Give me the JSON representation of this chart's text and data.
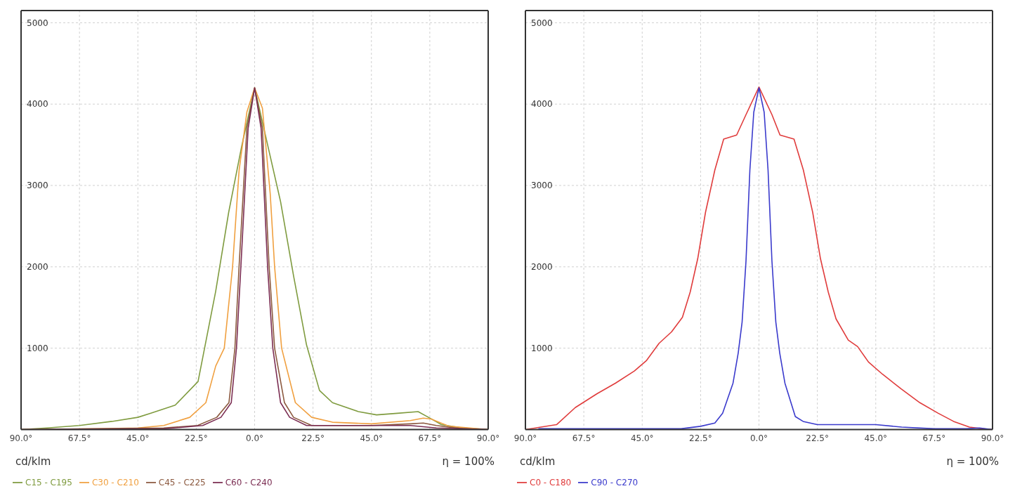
{
  "chart_data": [
    {
      "type": "line",
      "xlim": [
        -90,
        90
      ],
      "ylim": [
        0,
        5150
      ],
      "xticks": [
        {
          "value": -90,
          "label": "90.0°"
        },
        {
          "value": -67.5,
          "label": "67.5°"
        },
        {
          "value": -45,
          "label": "45.0°"
        },
        {
          "value": -22.5,
          "label": "22.5°"
        },
        {
          "value": 0,
          "label": "0.0°"
        },
        {
          "value": 22.5,
          "label": "22.5°"
        },
        {
          "value": 45,
          "label": "45.0°"
        },
        {
          "value": 67.5,
          "label": "67.5°"
        },
        {
          "value": 90,
          "label": "90.0°"
        }
      ],
      "yticks": [
        1000,
        2000,
        3000,
        4000,
        5000
      ],
      "grid": true,
      "legend": "bottom",
      "marker": "none",
      "line_style": "solid",
      "annotations": [
        "cd/klm",
        "η = 100%"
      ],
      "series": [
        {
          "name": "C15 - C195",
          "color": "#7f9b3f",
          "x": [
            -90,
            -80,
            -67.5,
            -55,
            -45,
            -40,
            -30.6,
            -21.8,
            -15,
            -10,
            -5,
            0,
            5,
            10,
            15,
            20,
            25,
            30,
            40,
            47,
            55,
            63,
            67,
            72,
            80,
            90
          ],
          "values": [
            0,
            20,
            50,
            100,
            150,
            200,
            300,
            590,
            1700,
            2670,
            3480,
            4200,
            3500,
            2800,
            1890,
            1040,
            480,
            330,
            220,
            180,
            200,
            220,
            150,
            60,
            20,
            0
          ]
        },
        {
          "name": "C30 - C210",
          "color": "#f0a040",
          "x": [
            -90,
            -60,
            -45,
            -35,
            -25,
            -18.8,
            -15,
            -11.7,
            -8.5,
            -6,
            -3,
            0,
            3,
            6,
            7.7,
            10.4,
            15.7,
            22,
            30,
            45,
            60,
            65,
            68,
            75,
            90
          ],
          "values": [
            0,
            10,
            20,
            50,
            150,
            330,
            780,
            1000,
            2000,
            3180,
            3900,
            4200,
            3950,
            2900,
            2000,
            1000,
            330,
            150,
            90,
            70,
            110,
            140,
            130,
            40,
            0
          ]
        },
        {
          "name": "C45 - C225",
          "color": "#8c5a40",
          "x": [
            -90,
            -35,
            -22,
            -14.6,
            -9.9,
            -7.6,
            -6,
            -3,
            0,
            3,
            5.6,
            7.7,
            11.5,
            15,
            22,
            45,
            60,
            65,
            70,
            80,
            90
          ],
          "values": [
            0,
            20,
            50,
            150,
            330,
            1000,
            2000,
            3700,
            4200,
            3700,
            2000,
            1000,
            330,
            150,
            50,
            50,
            70,
            80,
            50,
            10,
            0
          ]
        },
        {
          "name": "C60 - C240",
          "color": "#7b2d52",
          "x": [
            -90,
            -35,
            -20,
            -13,
            -9,
            -7,
            -5.3,
            -2.5,
            0,
            2.5,
            5,
            7,
            10,
            13.5,
            20,
            45,
            60,
            70,
            80,
            90
          ],
          "values": [
            0,
            10,
            50,
            150,
            330,
            1000,
            2000,
            3700,
            4200,
            3700,
            2000,
            1000,
            330,
            150,
            50,
            50,
            50,
            20,
            10,
            0
          ]
        }
      ]
    },
    {
      "type": "line",
      "xlim": [
        -90,
        90
      ],
      "ylim": [
        0,
        5150
      ],
      "xticks": [
        {
          "value": -90,
          "label": "90.0°"
        },
        {
          "value": -67.5,
          "label": "67.5°"
        },
        {
          "value": -45,
          "label": "45.0°"
        },
        {
          "value": -22.5,
          "label": "22.5°"
        },
        {
          "value": 0,
          "label": "0.0°"
        },
        {
          "value": 22.5,
          "label": "22.5°"
        },
        {
          "value": 45,
          "label": "45.0°"
        },
        {
          "value": 67.5,
          "label": "67.5°"
        },
        {
          "value": 90,
          "label": "90.0°"
        }
      ],
      "yticks": [
        1000,
        2000,
        3000,
        4000,
        5000
      ],
      "grid": true,
      "legend": "bottom",
      "marker": "none",
      "line_style": "solid",
      "annotations": [
        "cd/klm",
        "η = 100%"
      ],
      "series": [
        {
          "name": "C0 - C180",
          "color": "#e03c3c",
          "x": [
            -90,
            -78,
            -70.8,
            -62.4,
            -55.3,
            -48,
            -43.3,
            -38.5,
            -33.7,
            -29.5,
            -26.5,
            -23.6,
            -20.6,
            -17,
            -13.6,
            -8.6,
            -5,
            0,
            5,
            8.1,
            13.5,
            17.1,
            20.7,
            23.7,
            26.7,
            29.7,
            34.4,
            38,
            42.2,
            47.6,
            54.8,
            62,
            69.1,
            75,
            81.1,
            85.9,
            90
          ],
          "values": [
            0,
            60,
            270,
            440,
            570,
            720,
            850,
            1060,
            1200,
            1380,
            1690,
            2100,
            2670,
            3190,
            3570,
            3620,
            3870,
            4210,
            3870,
            3620,
            3570,
            3190,
            2670,
            2100,
            1690,
            1360,
            1100,
            1020,
            830,
            680,
            500,
            330,
            200,
            100,
            30,
            10,
            0
          ]
        },
        {
          "name": "C90 - C270",
          "color": "#3a3acc",
          "x": [
            -85,
            -60,
            -30,
            -22.5,
            -17,
            -14,
            -10,
            -8,
            -6.5,
            -5,
            -3.5,
            -2,
            0,
            2,
            3.5,
            5,
            6.5,
            8,
            10,
            14,
            17,
            22.5,
            30,
            45,
            55,
            67.5,
            80,
            85,
            90
          ],
          "values": [
            10,
            10,
            10,
            40,
            80,
            200,
            570,
            940,
            1320,
            2070,
            3190,
            3900,
            4200,
            3900,
            3190,
            2070,
            1320,
            940,
            570,
            160,
            100,
            60,
            60,
            60,
            30,
            10,
            10,
            20,
            0
          ]
        }
      ]
    }
  ]
}
